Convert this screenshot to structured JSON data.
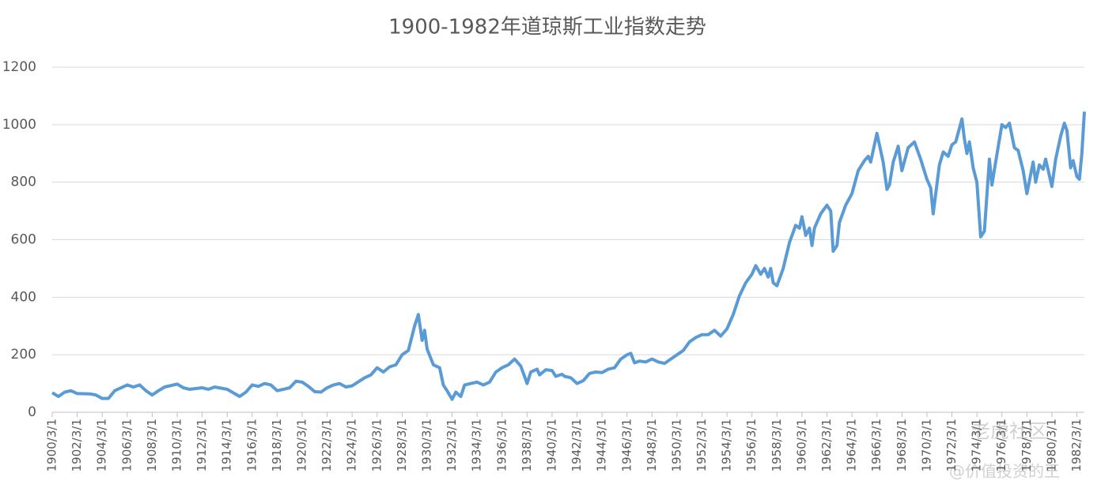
{
  "chart_data": {
    "type": "line",
    "title": "1900-1982年道琼斯工业指数走势",
    "series": [
      {
        "name": "道琼斯工业指数",
        "color": "#5b9bd5",
        "x": [
          1900,
          1900.5,
          1901,
          1901.5,
          1902,
          1903,
          1903.5,
          1904,
          1904.5,
          1905,
          1906,
          1906.5,
          1907,
          1907.5,
          1908,
          1908.5,
          1909,
          1910,
          1910.5,
          1911,
          1912,
          1912.5,
          1913,
          1914,
          1915,
          1915.5,
          1916,
          1916.5,
          1917,
          1917.5,
          1918,
          1918.5,
          1919,
          1919.5,
          1920,
          1920.5,
          1921,
          1921.5,
          1922,
          1922.5,
          1923,
          1923.5,
          1924,
          1925,
          1925.5,
          1926,
          1926.5,
          1927,
          1927.5,
          1928,
          1928.5,
          1929,
          1929.3,
          1929.6,
          1929.8,
          1930,
          1930.5,
          1931,
          1931.3,
          1931.6,
          1932,
          1932.3,
          1932.7,
          1933,
          1933.5,
          1934,
          1934.5,
          1935,
          1935.5,
          1936,
          1936.5,
          1937,
          1937.5,
          1938,
          1938.3,
          1938.8,
          1939,
          1939.5,
          1940,
          1940.3,
          1940.8,
          1941,
          1941.5,
          1942,
          1942.5,
          1943,
          1943.5,
          1944,
          1944.5,
          1945,
          1945.5,
          1946,
          1946.3,
          1946.6,
          1947,
          1947.5,
          1948,
          1948.5,
          1949,
          1949.5,
          1950,
          1950.5,
          1951,
          1951.5,
          1952,
          1952.5,
          1953,
          1953.5,
          1954,
          1954.5,
          1955,
          1955.5,
          1956,
          1956.3,
          1956.7,
          1957,
          1957.3,
          1957.5,
          1957.7,
          1958,
          1958.5,
          1959,
          1959.5,
          1959.8,
          1960,
          1960.3,
          1960.6,
          1960.8,
          1961,
          1961.5,
          1962,
          1962.3,
          1962.5,
          1962.8,
          1963,
          1963.5,
          1964,
          1964.5,
          1965,
          1965.3,
          1965.5,
          1966,
          1966.5,
          1966.8,
          1967,
          1967.3,
          1967.7,
          1968,
          1968.5,
          1969,
          1969.5,
          1970,
          1970.3,
          1970.5,
          1971,
          1971.3,
          1971.7,
          1972,
          1972.3,
          1972.8,
          1973,
          1973.2,
          1973.4,
          1973.7,
          1974,
          1974.3,
          1974.6,
          1975,
          1975.2,
          1975.5,
          1976,
          1976.3,
          1976.6,
          1977,
          1977.3,
          1977.7,
          1978,
          1978.5,
          1978.7,
          1979,
          1979.3,
          1979.5,
          1980,
          1980.3,
          1980.7,
          1981,
          1981.2,
          1981.5,
          1981.7,
          1982,
          1982.2,
          1982.4,
          1982.6
        ],
        "values": [
          68,
          55,
          70,
          75,
          65,
          64,
          60,
          48,
          48,
          75,
          95,
          88,
          95,
          75,
          60,
          75,
          88,
          98,
          85,
          80,
          85,
          80,
          88,
          80,
          55,
          70,
          95,
          90,
          100,
          95,
          75,
          80,
          85,
          108,
          105,
          90,
          72,
          70,
          85,
          95,
          100,
          88,
          92,
          120,
          130,
          155,
          140,
          158,
          165,
          200,
          215,
          300,
          340,
          250,
          285,
          220,
          165,
          155,
          95,
          75,
          45,
          70,
          55,
          95,
          100,
          105,
          95,
          105,
          140,
          155,
          165,
          185,
          160,
          100,
          140,
          150,
          130,
          148,
          145,
          125,
          132,
          125,
          120,
          100,
          110,
          135,
          140,
          138,
          150,
          155,
          185,
          200,
          205,
          172,
          178,
          175,
          185,
          175,
          170,
          185,
          200,
          215,
          245,
          260,
          270,
          270,
          285,
          265,
          290,
          340,
          405,
          450,
          480,
          510,
          480,
          500,
          470,
          500,
          450,
          440,
          500,
          590,
          650,
          640,
          680,
          615,
          640,
          580,
          640,
          690,
          720,
          700,
          560,
          580,
          660,
          720,
          760,
          840,
          875,
          890,
          870,
          970,
          870,
          775,
          790,
          870,
          925,
          840,
          920,
          940,
          880,
          810,
          780,
          690,
          860,
          905,
          890,
          930,
          940,
          1020,
          950,
          900,
          940,
          850,
          800,
          610,
          630,
          880,
          790,
          870,
          1000,
          990,
          1005,
          920,
          910,
          840,
          760,
          870,
          800,
          860,
          845,
          880,
          785,
          880,
          960,
          1005,
          980,
          850,
          875,
          820,
          810,
          900,
          1045
        ]
      }
    ],
    "xlim": [
      1900,
      1982.6
    ],
    "xticks": [
      {
        "value": 1900,
        "label": "1900/3/1"
      },
      {
        "value": 1902,
        "label": "1902/3/1"
      },
      {
        "value": 1904,
        "label": "1904/3/1"
      },
      {
        "value": 1906,
        "label": "1906/3/1"
      },
      {
        "value": 1908,
        "label": "1908/3/1"
      },
      {
        "value": 1910,
        "label": "1910/3/1"
      },
      {
        "value": 1912,
        "label": "1912/3/1"
      },
      {
        "value": 1914,
        "label": "1914/3/1"
      },
      {
        "value": 1916,
        "label": "1916/3/1"
      },
      {
        "value": 1918,
        "label": "1918/3/1"
      },
      {
        "value": 1920,
        "label": "1920/3/1"
      },
      {
        "value": 1922,
        "label": "1922/3/1"
      },
      {
        "value": 1924,
        "label": "1924/3/1"
      },
      {
        "value": 1926,
        "label": "1926/3/1"
      },
      {
        "value": 1928,
        "label": "1928/3/1"
      },
      {
        "value": 1930,
        "label": "1930/3/1"
      },
      {
        "value": 1932,
        "label": "1932/3/1"
      },
      {
        "value": 1934,
        "label": "1934/3/1"
      },
      {
        "value": 1936,
        "label": "1936/3/1"
      },
      {
        "value": 1938,
        "label": "1938/3/1"
      },
      {
        "value": 1940,
        "label": "1940/3/1"
      },
      {
        "value": 1942,
        "label": "1942/3/1"
      },
      {
        "value": 1944,
        "label": "1944/3/1"
      },
      {
        "value": 1946,
        "label": "1946/3/1"
      },
      {
        "value": 1948,
        "label": "1948/3/1"
      },
      {
        "value": 1950,
        "label": "1950/3/1"
      },
      {
        "value": 1952,
        "label": "1952/3/1"
      },
      {
        "value": 1954,
        "label": "1954/3/1"
      },
      {
        "value": 1956,
        "label": "1956/3/1"
      },
      {
        "value": 1958,
        "label": "1958/3/1"
      },
      {
        "value": 1960,
        "label": "1960/3/1"
      },
      {
        "value": 1962,
        "label": "1962/3/1"
      },
      {
        "value": 1964,
        "label": "1964/3/1"
      },
      {
        "value": 1966,
        "label": "1966/3/1"
      },
      {
        "value": 1968,
        "label": "1968/3/1"
      },
      {
        "value": 1970,
        "label": "1970/3/1"
      },
      {
        "value": 1972,
        "label": "1972/3/1"
      },
      {
        "value": 1974,
        "label": "1974/3/1"
      },
      {
        "value": 1976,
        "label": "1976/3/1"
      },
      {
        "value": 1978,
        "label": "1978/3/1"
      },
      {
        "value": 1980,
        "label": "1980/3/1"
      },
      {
        "value": 1982,
        "label": "1982/3/1"
      }
    ],
    "ylim": [
      0,
      1200
    ],
    "yticks": [
      0,
      200,
      400,
      600,
      800,
      1000,
      1200
    ],
    "grid": true,
    "watermark": [
      "老虎社区",
      "@价值投资的王"
    ]
  }
}
